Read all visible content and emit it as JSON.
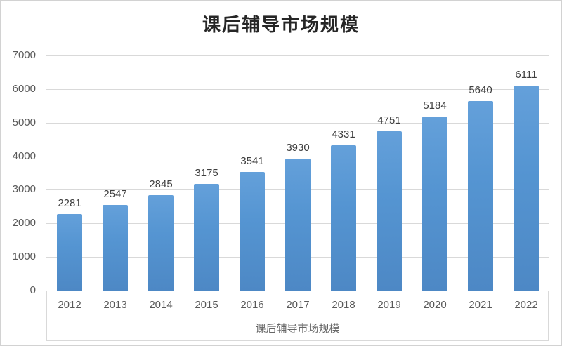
{
  "chart_data": {
    "type": "bar",
    "title": "课后辅导市场规模",
    "categories": [
      "2012",
      "2013",
      "2014",
      "2015",
      "2016",
      "2017",
      "2018",
      "2019",
      "2020",
      "2021",
      "2022"
    ],
    "values": [
      2281,
      2547,
      2845,
      3175,
      3541,
      3930,
      4331,
      4751,
      5184,
      5640,
      6111
    ],
    "data_labels": [
      2281,
      2547,
      2845,
      3175,
      3541,
      3930,
      4331,
      4751,
      5184,
      5640,
      6111
    ],
    "xlabel": "课后辅导市场规模",
    "ylabel": "",
    "ylim": [
      0,
      7000
    ],
    "yticks": [
      0,
      1000,
      2000,
      3000,
      4000,
      5000,
      6000,
      7000
    ],
    "grid": true,
    "legend_position": "none"
  },
  "colors": {
    "bar": "#5595d2",
    "bar_top": "#64a0da",
    "bar_bottom": "#4d88c5",
    "gridline": "#d9d9d9",
    "tick_text": "#595959",
    "data_label_text": "#3f3f3f",
    "title_text": "#262626",
    "frame_border": "#d2d2d2"
  }
}
